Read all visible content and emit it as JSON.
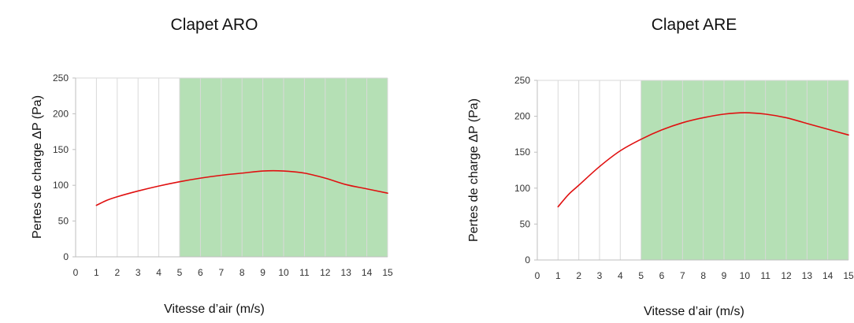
{
  "chart_data": [
    {
      "type": "line",
      "title": "Clapet ARO",
      "xlabel": "Vitesse d’air (m/s)",
      "ylabel": "Pertes de charge ΔP (Pa)",
      "xlim": [
        0,
        15
      ],
      "ylim": [
        0,
        250
      ],
      "xticks": [
        0,
        1,
        2,
        3,
        4,
        5,
        6,
        7,
        8,
        9,
        10,
        11,
        12,
        13,
        14,
        15
      ],
      "yticks": [
        0,
        50,
        100,
        150,
        200,
        250
      ],
      "grid": "vertical",
      "highlight_band": {
        "x": [
          5,
          15
        ],
        "color": "#b5e0b5"
      },
      "series": [
        {
          "color": "#e01010",
          "x": [
            1,
            1.5,
            2,
            3,
            4,
            5,
            6,
            7,
            8,
            9,
            10,
            11,
            12,
            13,
            14,
            15
          ],
          "y": [
            72,
            79,
            84,
            92,
            99,
            105,
            110,
            114,
            117,
            120,
            120,
            117,
            110,
            101,
            95,
            89
          ]
        }
      ]
    },
    {
      "type": "line",
      "title": "Clapet ARE",
      "xlabel": "Vitesse d’air (m/s)",
      "ylabel": "Pertes de charge ΔP (Pa)",
      "xlim": [
        0,
        15
      ],
      "ylim": [
        0,
        250
      ],
      "xticks": [
        0,
        1,
        2,
        3,
        4,
        5,
        6,
        7,
        8,
        9,
        10,
        11,
        12,
        13,
        14,
        15
      ],
      "yticks": [
        0,
        50,
        100,
        150,
        200,
        250
      ],
      "grid": "vertical",
      "highlight_band": {
        "x": [
          5,
          15
        ],
        "color": "#b5e0b5"
      },
      "series": [
        {
          "color": "#e01010",
          "x": [
            1,
            1.5,
            2,
            3,
            4,
            5,
            6,
            7,
            8,
            9,
            10,
            11,
            12,
            13,
            14,
            15
          ],
          "y": [
            74,
            91,
            104,
            130,
            152,
            168,
            181,
            191,
            198,
            203,
            205,
            203,
            198,
            190,
            182,
            174
          ]
        }
      ]
    }
  ]
}
